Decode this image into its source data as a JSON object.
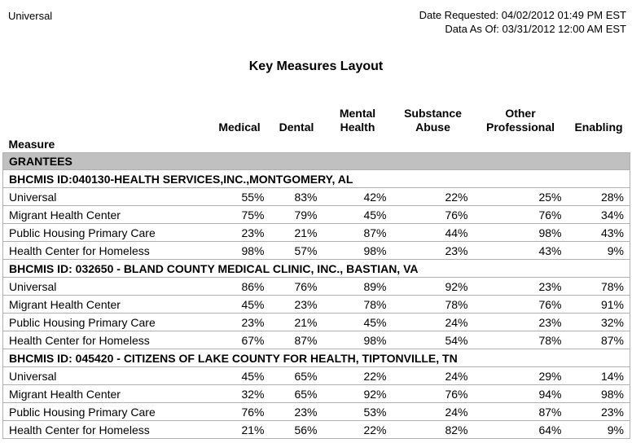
{
  "header": {
    "report_name": "Universal",
    "date_requested": "Date Requested: 04/02/2012 01:49 PM EST",
    "data_as_of": "Data As Of: 03/31/2012 12:00 AM EST",
    "title": "Key Measures Layout"
  },
  "table": {
    "measure_column_header": "Measure",
    "columns": [
      "Medical",
      "Dental",
      "Mental Health",
      "Substance Abuse",
      "Other Professional",
      "Enabling"
    ],
    "section_header": "GRANTEES",
    "grantees": [
      {
        "id_line": "BHCMIS ID:040130-HEALTH SERVICES,INC.,MONTGOMERY, AL",
        "rows": [
          {
            "measure": "Universal",
            "values": [
              "55%",
              "83%",
              "42%",
              "22%",
              "25%",
              "28%"
            ]
          },
          {
            "measure": "Migrant Health Center",
            "values": [
              "75%",
              "79%",
              "45%",
              "76%",
              "76%",
              "34%"
            ]
          },
          {
            "measure": "Public Housing Primary Care",
            "values": [
              "23%",
              "21%",
              "87%",
              "44%",
              "98%",
              "43%"
            ]
          },
          {
            "measure": "Health Center for Homeless",
            "values": [
              "98%",
              "57%",
              "98%",
              "23%",
              "43%",
              "9%"
            ]
          }
        ]
      },
      {
        "id_line": "BHCMIS ID: 032650 - BLAND COUNTY MEDICAL CLINIC, INC., BASTIAN, VA",
        "rows": [
          {
            "measure": "Universal",
            "values": [
              "86%",
              "76%",
              "89%",
              "92%",
              "23%",
              "78%"
            ]
          },
          {
            "measure": "Migrant Health Center",
            "values": [
              "45%",
              "23%",
              "78%",
              "78%",
              "76%",
              "91%"
            ]
          },
          {
            "measure": "Public Housing Primary Care",
            "values": [
              "23%",
              "21%",
              "45%",
              "24%",
              "23%",
              "32%"
            ]
          },
          {
            "measure": "Health Center for Homeless",
            "values": [
              "67%",
              "87%",
              "98%",
              "54%",
              "78%",
              "87%"
            ]
          }
        ]
      },
      {
        "id_line": "BHCMIS ID: 045420 - CITIZENS OF LAKE COUNTY FOR HEALTH, TIPTONVILLE, TN",
        "rows": [
          {
            "measure": "Universal",
            "values": [
              "45%",
              "65%",
              "22%",
              "24%",
              "29%",
              "14%"
            ]
          },
          {
            "measure": "Migrant Health Center",
            "values": [
              "32%",
              "65%",
              "92%",
              "76%",
              "94%",
              "98%"
            ]
          },
          {
            "measure": "Public Housing Primary Care",
            "values": [
              "76%",
              "23%",
              "53%",
              "24%",
              "87%",
              "23%"
            ]
          },
          {
            "measure": "Health Center for Homeless",
            "values": [
              "21%",
              "56%",
              "22%",
              "82%",
              "64%",
              "9%"
            ]
          }
        ]
      }
    ]
  },
  "colors": {
    "section_header_bg": "#c0c0c0",
    "table_border": "#b0b0b0",
    "text": "#000000",
    "background": "#ffffff"
  }
}
